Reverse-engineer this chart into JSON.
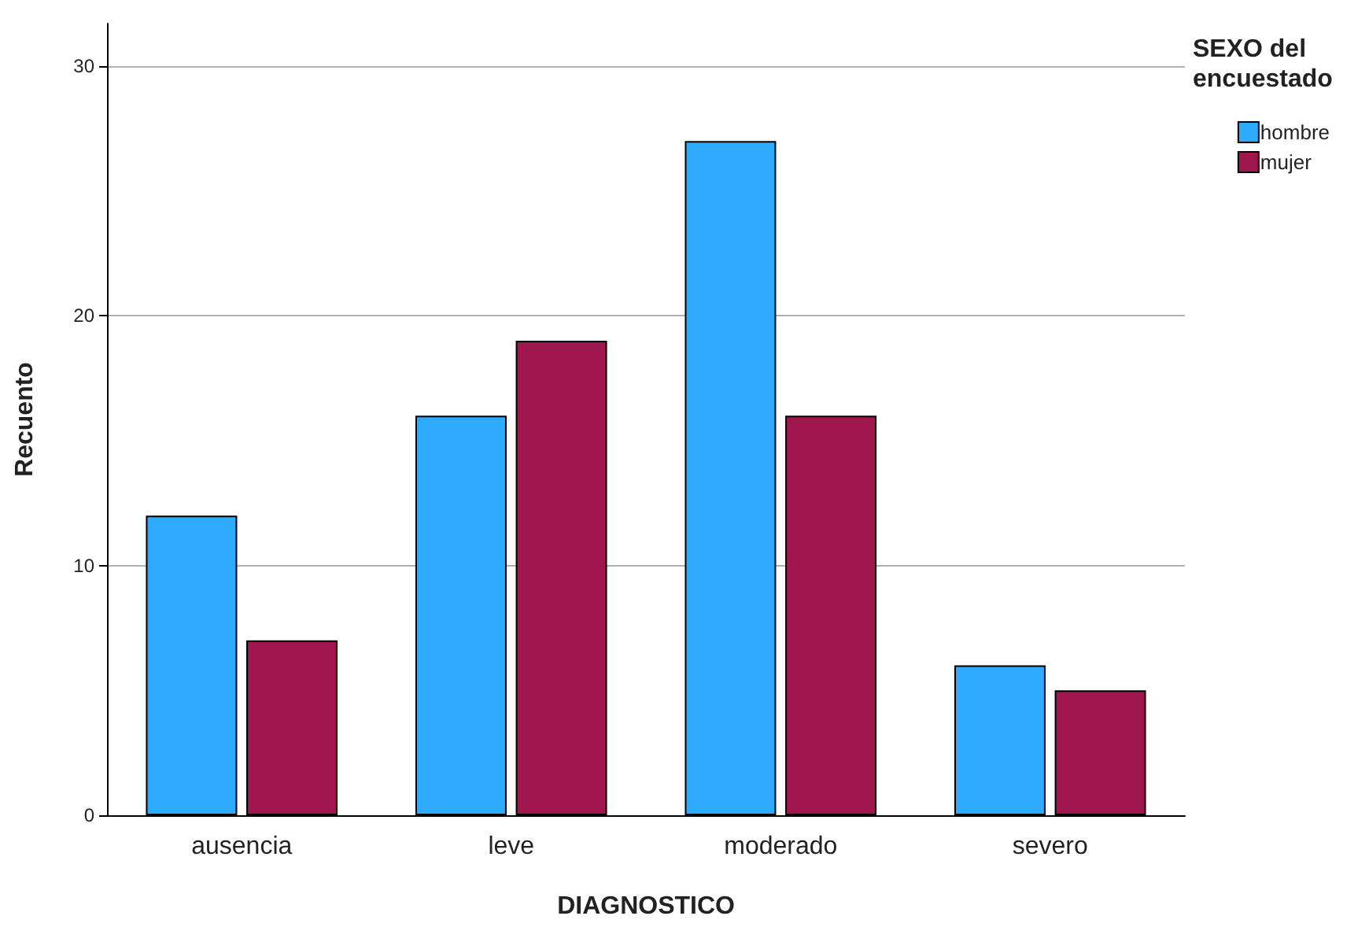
{
  "chart_data": {
    "type": "bar",
    "xlabel": "DIAGNOSTICO",
    "ylabel": "Recuento",
    "legend_title": "SEXO del encuestado",
    "categories": [
      "ausencia",
      "leve",
      "moderado",
      "severo"
    ],
    "series": [
      {
        "name": "hombre",
        "color": "#2eaaff",
        "values": [
          12,
          16,
          27,
          6
        ]
      },
      {
        "name": "mujer",
        "color": "#a0174f",
        "values": [
          7,
          19,
          16,
          5
        ]
      }
    ],
    "ylim": [
      0,
      31.7
    ],
    "yticks": [
      0,
      10,
      20,
      30
    ],
    "grid": "y",
    "legend": "top right"
  }
}
